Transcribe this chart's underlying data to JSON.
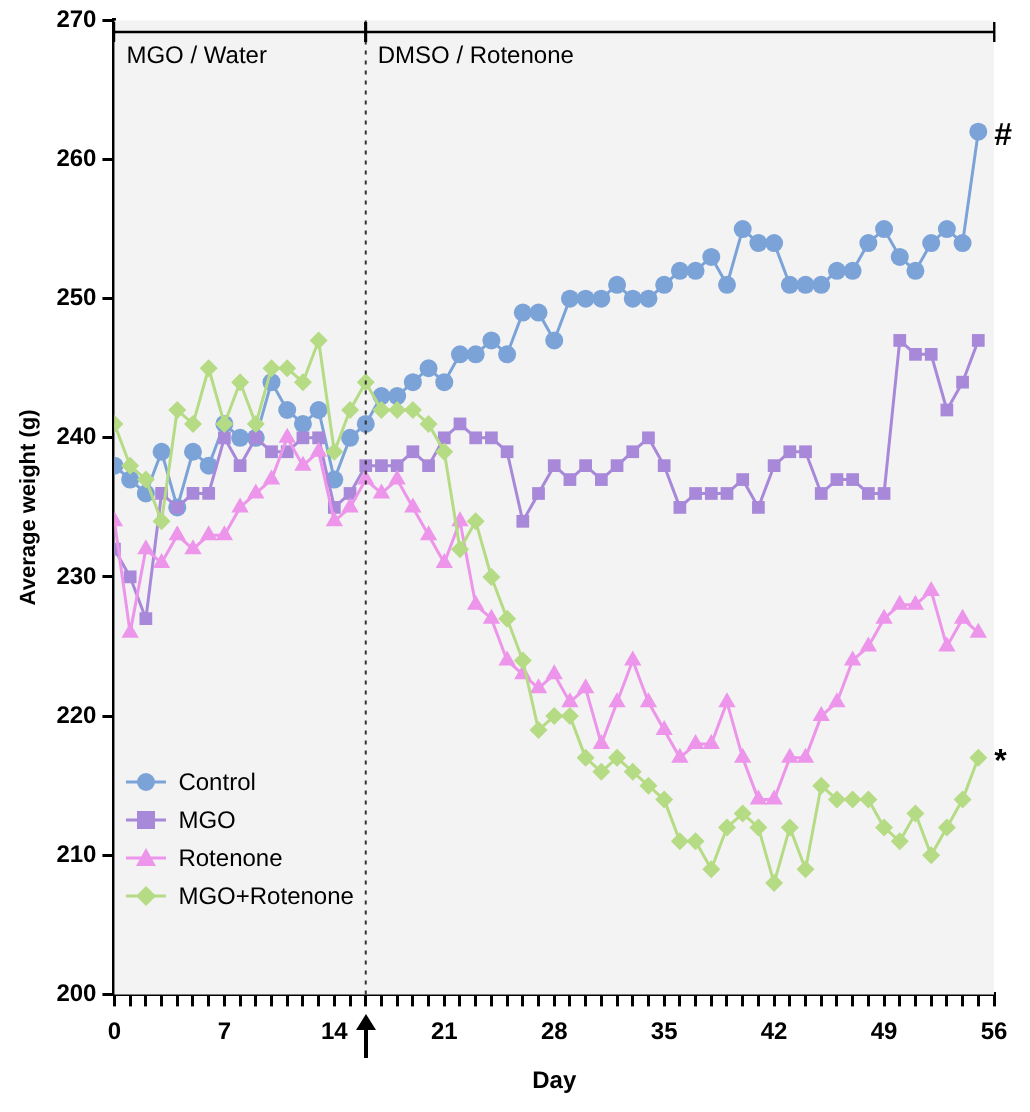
{
  "chart_data": {
    "type": "line",
    "xlabel": "Day",
    "ylabel": "Average weight (g)",
    "x": [
      0,
      1,
      2,
      3,
      4,
      5,
      6,
      7,
      8,
      9,
      10,
      11,
      12,
      13,
      14,
      15,
      16,
      17,
      18,
      19,
      20,
      21,
      22,
      23,
      24,
      25,
      26,
      27,
      28,
      29,
      30,
      31,
      32,
      33,
      34,
      35,
      36,
      37,
      38,
      39,
      40,
      41,
      42,
      43,
      44,
      45,
      46,
      47,
      48,
      49,
      50,
      51,
      52,
      53,
      54,
      55
    ],
    "series": [
      {
        "name": "Control",
        "color": "#7ba3d8",
        "marker": "circle",
        "values": [
          238,
          237,
          236,
          239,
          235,
          239,
          238,
          241,
          240,
          240,
          244,
          242,
          241,
          242,
          237,
          240,
          241,
          243,
          243,
          244,
          245,
          244,
          246,
          246,
          247,
          246,
          249,
          249,
          247,
          250,
          250,
          250,
          251,
          250,
          250,
          251,
          252,
          252,
          253,
          251,
          255,
          254,
          254,
          251,
          251,
          251,
          252,
          252,
          254,
          255,
          253,
          252,
          254,
          255,
          254,
          262
        ]
      },
      {
        "name": "MGO",
        "color": "#a888d8",
        "marker": "square",
        "values": [
          232,
          230,
          227,
          236,
          235,
          236,
          236,
          240,
          238,
          240,
          239,
          239,
          240,
          240,
          235,
          236,
          238,
          238,
          238,
          239,
          238,
          240,
          241,
          240,
          240,
          239,
          234,
          236,
          238,
          237,
          238,
          237,
          238,
          239,
          240,
          238,
          235,
          236,
          236,
          236,
          237,
          235,
          238,
          239,
          239,
          236,
          237,
          237,
          236,
          236,
          247,
          246,
          246,
          242,
          244,
          247
        ]
      },
      {
        "name": "Rotenone",
        "color": "#ec95ea",
        "marker": "triangle",
        "values": [
          234,
          226,
          232,
          231,
          233,
          232,
          233,
          233,
          235,
          236,
          237,
          240,
          238,
          239,
          234,
          235,
          237,
          236,
          237,
          235,
          233,
          231,
          234,
          228,
          227,
          224,
          223,
          222,
          223,
          221,
          222,
          218,
          221,
          224,
          221,
          219,
          217,
          218,
          218,
          221,
          217,
          214,
          214,
          217,
          217,
          220,
          221,
          224,
          225,
          227,
          228,
          228,
          229,
          225,
          227,
          226
        ]
      },
      {
        "name": "MGO+Rotenone",
        "color": "#b5db84",
        "marker": "diamond",
        "values": [
          241,
          238,
          237,
          234,
          242,
          241,
          245,
          241,
          244,
          241,
          245,
          245,
          244,
          247,
          239,
          242,
          244,
          242,
          242,
          242,
          241,
          239,
          232,
          234,
          230,
          227,
          224,
          219,
          220,
          220,
          217,
          216,
          217,
          216,
          215,
          214,
          211,
          211,
          209,
          212,
          213,
          212,
          208,
          212,
          209,
          215,
          214,
          214,
          214,
          212,
          211,
          213,
          210,
          212,
          214,
          217
        ]
      }
    ],
    "xlim": [
      0,
      56
    ],
    "xticks": [
      0,
      {
        "value": 1,
        "label": null
      },
      {
        "value": 2,
        "label": null
      },
      {
        "value": 3,
        "label": null
      },
      {
        "value": 4,
        "label": null
      },
      {
        "value": 5,
        "label": null
      },
      {
        "value": 6,
        "label": null
      },
      7,
      {
        "value": 8,
        "label": null
      },
      {
        "value": 9,
        "label": null
      },
      {
        "value": 10,
        "label": null
      },
      {
        "value": 11,
        "label": null
      },
      {
        "value": 12,
        "label": null
      },
      {
        "value": 13,
        "label": null
      },
      14,
      {
        "value": 15,
        "label": null
      },
      {
        "value": 16,
        "label": null
      },
      {
        "value": 17,
        "label": null
      },
      {
        "value": 18,
        "label": null
      },
      {
        "value": 19,
        "label": null
      },
      {
        "value": 20,
        "label": null
      },
      21,
      {
        "value": 22,
        "label": null
      },
      {
        "value": 23,
        "label": null
      },
      {
        "value": 24,
        "label": null
      },
      {
        "value": 25,
        "label": null
      },
      {
        "value": 26,
        "label": null
      },
      {
        "value": 27,
        "label": null
      },
      28,
      {
        "value": 29,
        "label": null
      },
      {
        "value": 30,
        "label": null
      },
      {
        "value": 31,
        "label": null
      },
      {
        "value": 32,
        "label": null
      },
      {
        "value": 33,
        "label": null
      },
      {
        "value": 34,
        "label": null
      },
      35,
      {
        "value": 36,
        "label": null
      },
      {
        "value": 37,
        "label": null
      },
      {
        "value": 38,
        "label": null
      },
      {
        "value": 39,
        "label": null
      },
      {
        "value": 40,
        "label": null
      },
      {
        "value": 41,
        "label": null
      },
      42,
      {
        "value": 43,
        "label": null
      },
      {
        "value": 44,
        "label": null
      },
      {
        "value": 45,
        "label": null
      },
      {
        "value": 46,
        "label": null
      },
      {
        "value": 47,
        "label": null
      },
      {
        "value": 48,
        "label": null
      },
      49,
      {
        "value": 50,
        "label": null
      },
      {
        "value": 51,
        "label": null
      },
      {
        "value": 52,
        "label": null
      },
      {
        "value": 53,
        "label": null
      },
      {
        "value": 54,
        "label": null
      },
      {
        "value": 55,
        "label": null
      },
      56
    ],
    "ylim": [
      200,
      270
    ],
    "yticks": [
      200,
      210,
      220,
      230,
      240,
      250,
      260,
      270
    ],
    "grid": false,
    "legend": "bottom left",
    "line_style": "solid",
    "bands": [
      {
        "axis": "x",
        "from": 0,
        "to": 16,
        "label": "MGO / Water",
        "color": "#f3f3f3"
      },
      {
        "axis": "x",
        "from": 16,
        "to": 56,
        "label": "DMSO / Rotenone",
        "color": "#f3f3f3"
      }
    ],
    "ref_lines": [
      {
        "axis": "x",
        "value": 16,
        "color": "#333333",
        "line_style": "dotted"
      }
    ],
    "annotations": [
      {
        "text": "#",
        "x": 55,
        "y": 262
      },
      {
        "text": "*",
        "x": 55,
        "y": 217
      }
    ]
  }
}
